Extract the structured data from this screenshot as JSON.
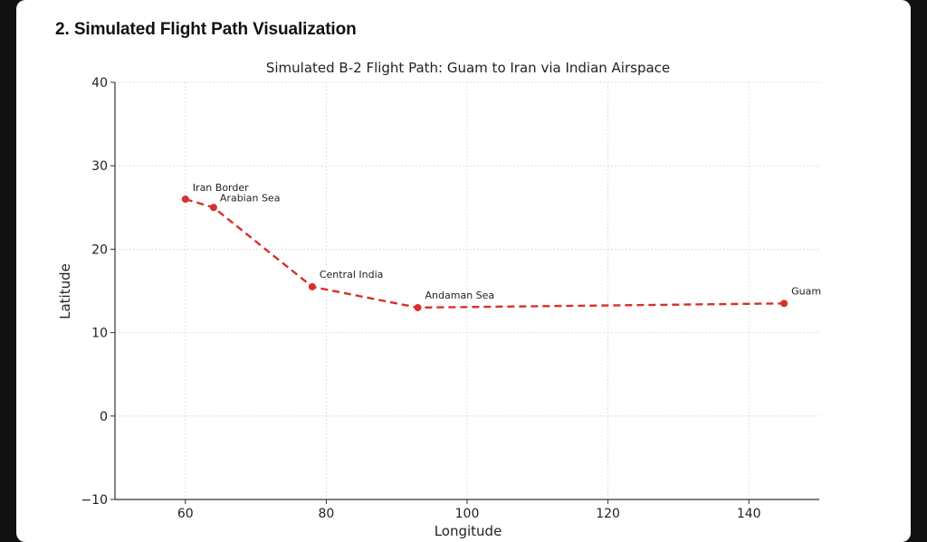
{
  "header": {
    "section_title": "2. Simulated Flight Path Visualization"
  },
  "chart_data": {
    "type": "line",
    "title": "Simulated B-2 Flight Path: Guam to Iran via Indian Airspace",
    "xlabel": "Longitude",
    "ylabel": "Latitude",
    "xlim": [
      50,
      150
    ],
    "ylim": [
      -10,
      40
    ],
    "xticks": [
      60,
      80,
      100,
      120,
      140
    ],
    "yticks": [
      -10,
      0,
      10,
      20,
      30,
      40
    ],
    "ytick_labels": [
      "−10",
      "0",
      "10",
      "20",
      "30",
      "40"
    ],
    "grid": true,
    "line_style": "dashed",
    "marker": "circle",
    "color": "#d6312b",
    "series": [
      {
        "points": [
          {
            "label": "Iran Border",
            "x": 60,
            "y": 26
          },
          {
            "label": "Arabian Sea",
            "x": 64,
            "y": 25
          },
          {
            "label": "Central India",
            "x": 78,
            "y": 15.5
          },
          {
            "label": "Andaman Sea",
            "x": 93,
            "y": 13
          },
          {
            "label": "Guam",
            "x": 145,
            "y": 13.5
          }
        ]
      }
    ]
  }
}
